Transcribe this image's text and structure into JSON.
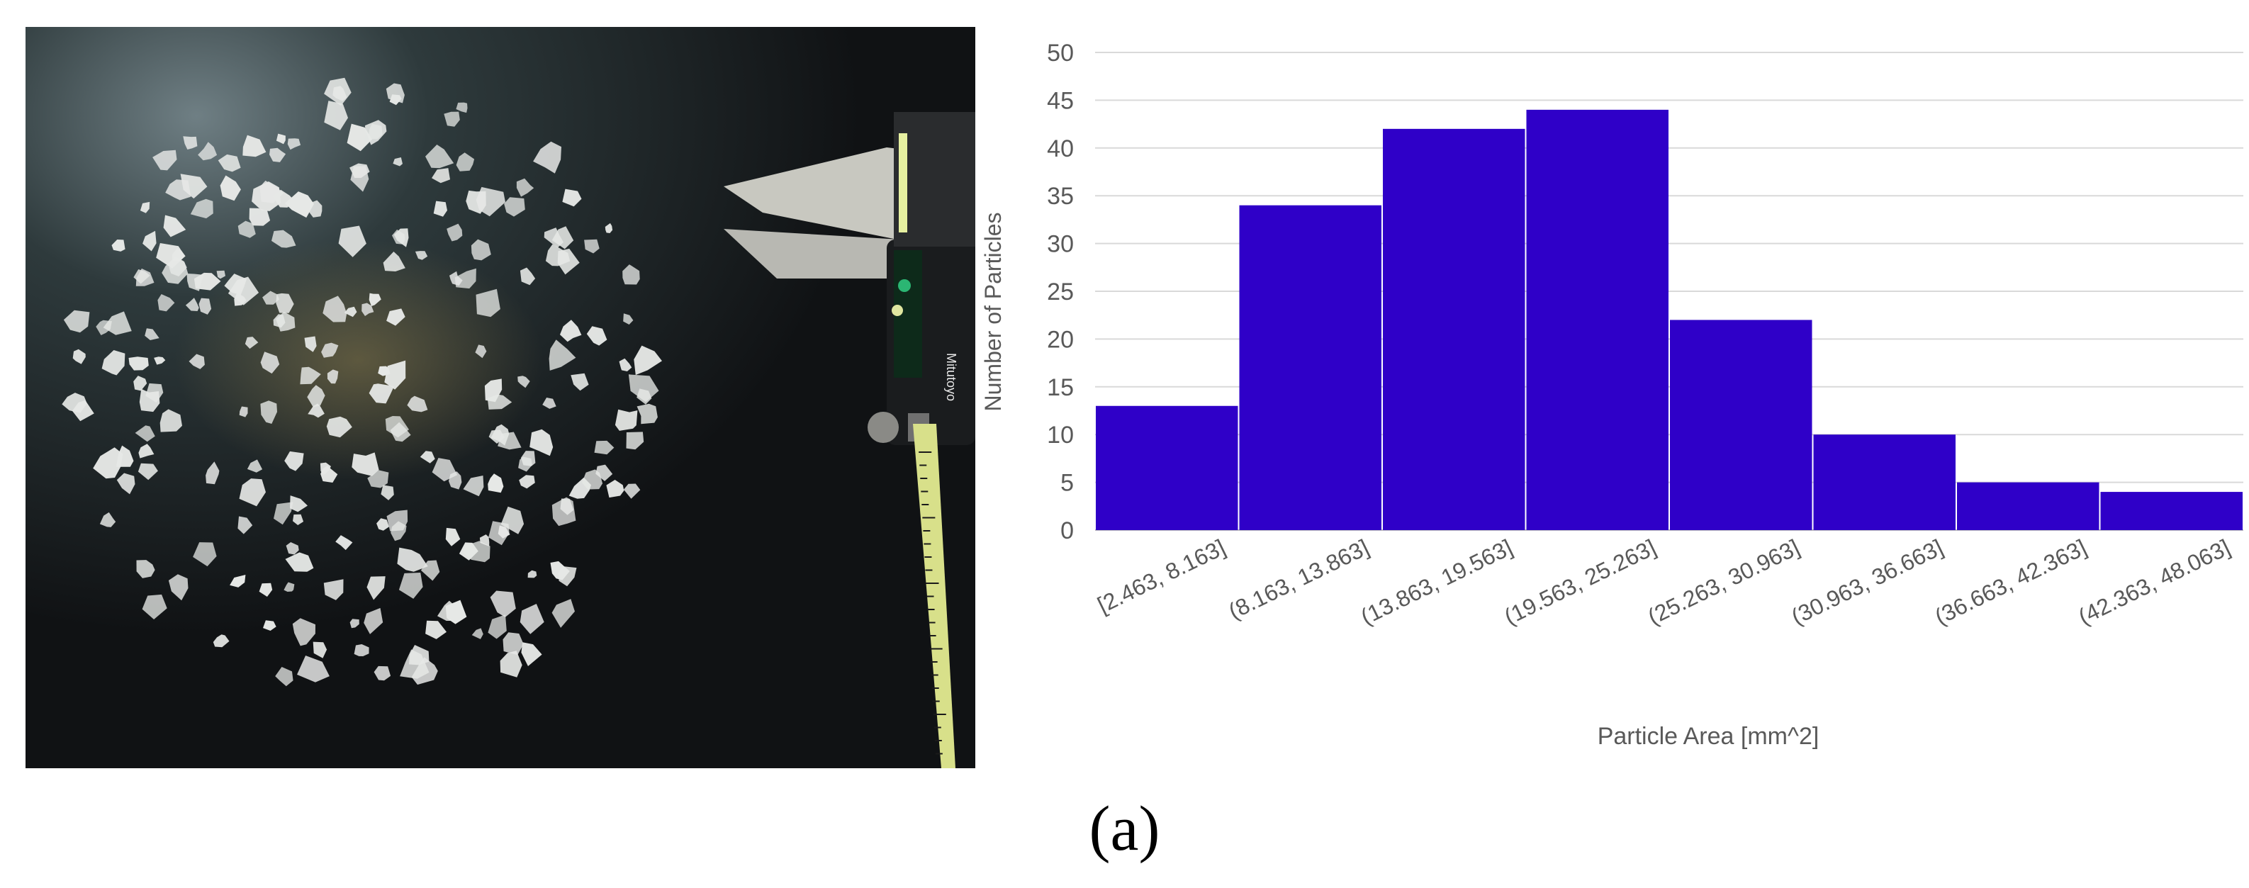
{
  "panel_label": "(a)",
  "photo": {
    "caliper_brand": "Mitutoyo"
  },
  "chart_data": {
    "type": "bar",
    "title": "",
    "xlabel": "Particle Area [mm^2]",
    "ylabel": "Number of Particles",
    "ylim": [
      0,
      50
    ],
    "yticks": [
      0,
      5,
      10,
      15,
      20,
      25,
      30,
      35,
      40,
      45,
      50
    ],
    "grid": true,
    "legend": "none",
    "bar_color": "#2f00c8",
    "categories": [
      "[2.463, 8.163]",
      "(8.163, 13.863]",
      "(13.863, 19.563]",
      "(19.563, 25.263]",
      "(25.263, 30.963]",
      "(30.963, 36.663]",
      "(36.663, 42.363]",
      "(42.363, 48.063]"
    ],
    "values": [
      13,
      34,
      42,
      44,
      22,
      10,
      5,
      4
    ]
  }
}
